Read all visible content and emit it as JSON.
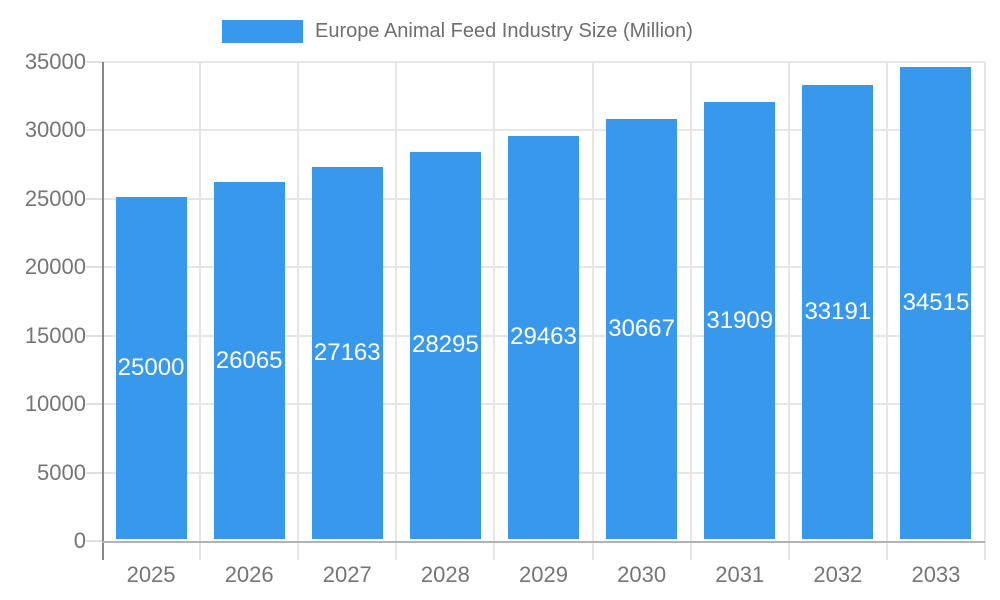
{
  "legend": {
    "label": "Europe Animal Feed Industry Size (Million)",
    "swatch_color": "#3899EC",
    "position": "top-center"
  },
  "chart_data": {
    "type": "bar",
    "title": "Europe Animal Feed Industry Size (Million)",
    "categories": [
      "2025",
      "2026",
      "2027",
      "2028",
      "2029",
      "2030",
      "2031",
      "2032",
      "2033"
    ],
    "series": [
      {
        "name": "Europe Animal Feed Industry Size (Million)",
        "values": [
          25000,
          26065,
          27163,
          28295,
          29463,
          30667,
          31909,
          33191,
          34515
        ]
      }
    ],
    "value_labels": [
      "25000",
      "26065",
      "27163",
      "28295",
      "29463",
      "30667",
      "31909",
      "33191",
      "34515"
    ],
    "xlabel": "",
    "ylabel": "",
    "ylim": [
      0,
      35000
    ],
    "yticks": [
      0,
      5000,
      10000,
      15000,
      20000,
      25000,
      30000,
      35000
    ],
    "ytick_labels": [
      "0",
      "5000",
      "10000",
      "15000",
      "20000",
      "25000",
      "30000",
      "35000"
    ],
    "grid": true,
    "legend_position": "top-center",
    "colors": {
      "bar": "#3899EC",
      "value_label_text": "#ffffff",
      "axis_text": "#757575",
      "legend_text": "#6e6e6e",
      "gridline": "#e6e6e6",
      "y_axis_line": "#878787",
      "x_axis_line": "#b3b3b3",
      "background": "#ffffff"
    }
  }
}
